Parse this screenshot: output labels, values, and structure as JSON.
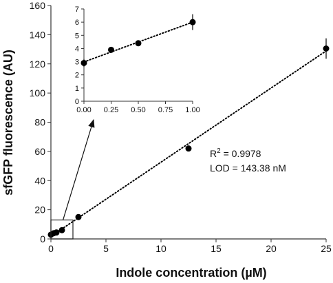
{
  "chart_data": {
    "type": "scatter",
    "xlabel": "Indole concentration (µM)",
    "ylabel": "sfGFP fluorescence (AU)",
    "xlim": [
      0,
      25
    ],
    "ylim": [
      0,
      160
    ],
    "x_ticks": [
      0,
      5,
      10,
      15,
      20,
      25
    ],
    "y_ticks": [
      0,
      20,
      40,
      60,
      80,
      100,
      120,
      140,
      160
    ],
    "grid": false,
    "series": [
      {
        "x": [
          0,
          0.25,
          0.5,
          1,
          2.5,
          12.5,
          25
        ],
        "y": [
          2.9,
          3.9,
          4.4,
          6.0,
          15.0,
          62.0,
          130.5
        ],
        "error": [
          0.3,
          0.2,
          0.2,
          0.6,
          0.8,
          1.5,
          7.0
        ],
        "trendline": "linear, dotted"
      }
    ],
    "annotations": {
      "r2_prefix": "R",
      "r2_superscript": "2",
      "r2_value": " = 0.9978",
      "lod": "LOD = 143.38 nM"
    },
    "inset": {
      "xlim": [
        0,
        1
      ],
      "ylim": [
        0,
        7
      ],
      "x_ticks": [
        "0.00",
        "0.25",
        "0.50",
        "0.75",
        "1.00"
      ],
      "y_ticks": [
        "0",
        "1",
        "2",
        "3",
        "4",
        "5",
        "6",
        "7"
      ],
      "series": [
        {
          "x": [
            0,
            0.25,
            0.5,
            1
          ],
          "y": [
            2.9,
            3.9,
            4.4,
            6.0
          ],
          "error": [
            0.3,
            0.2,
            0.2,
            0.6
          ],
          "trendline": "linear, dotted"
        }
      ],
      "zoom_box": {
        "x": [
          0,
          2
        ],
        "y": [
          0,
          13
        ]
      }
    },
    "colors": {
      "marker": "#000000",
      "axis": "#333333",
      "text": "#111111"
    }
  }
}
